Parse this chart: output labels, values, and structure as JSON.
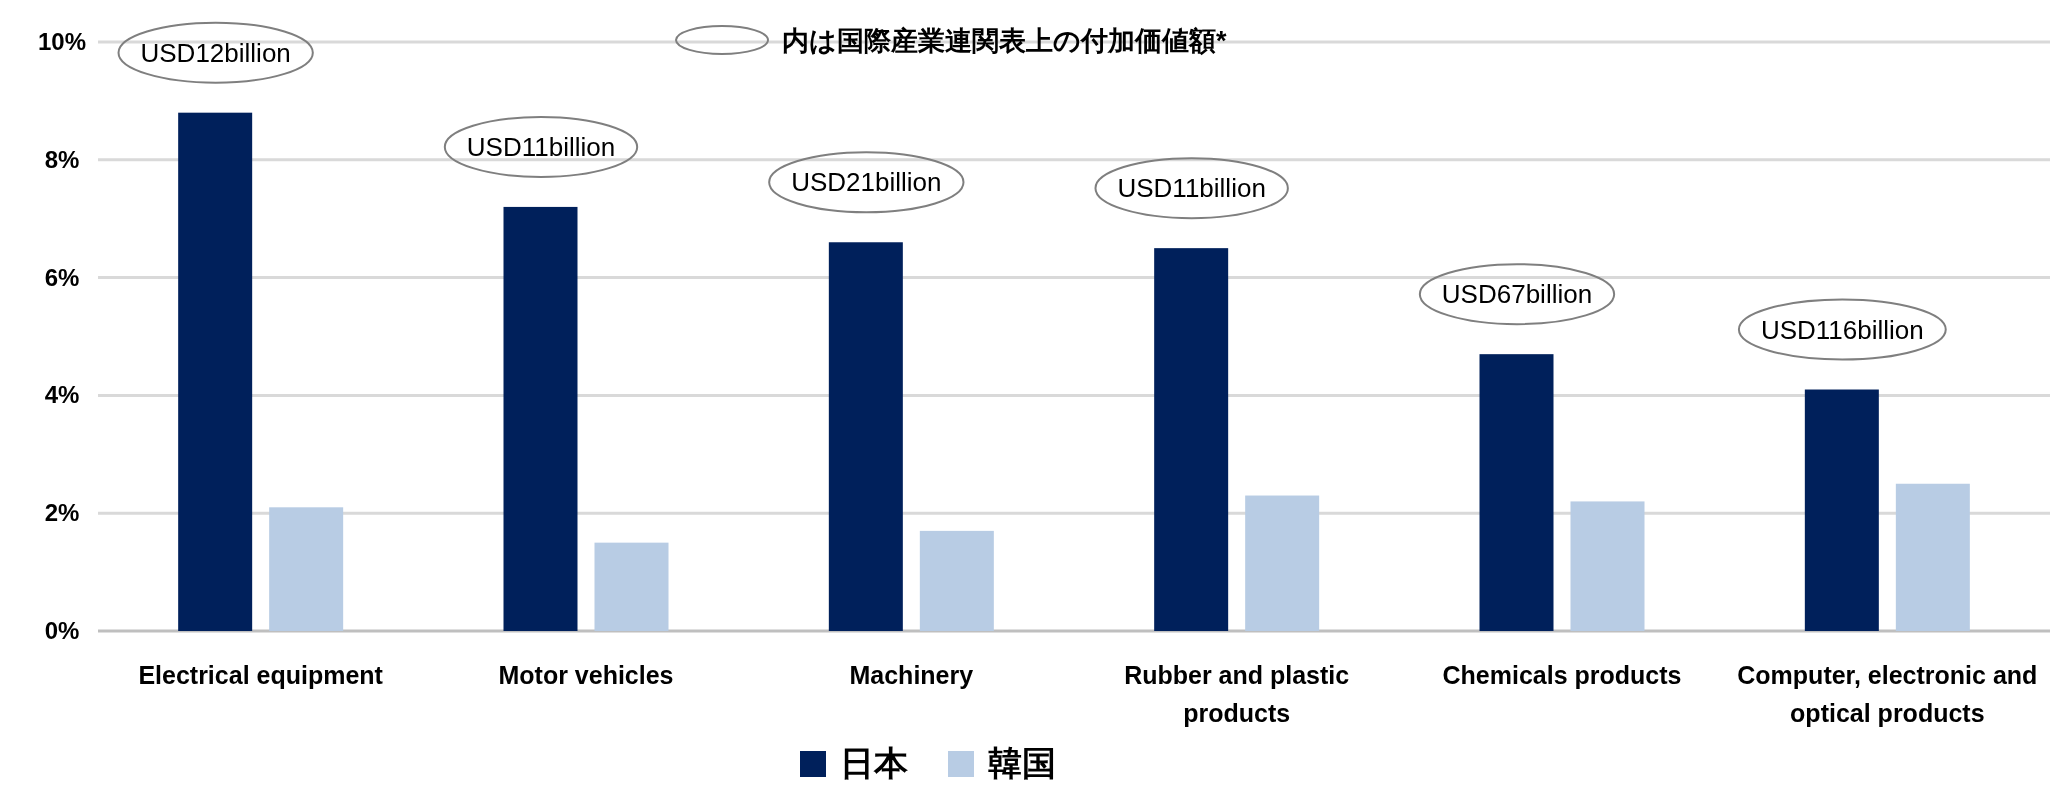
{
  "chart_data": {
    "type": "bar",
    "categories": [
      "Electrical equipment",
      "Motor vehicles",
      "Machinery",
      "Rubber and plastic products",
      "Chemicals products",
      "Computer, electronic and optical products"
    ],
    "series": [
      {
        "name": "日本",
        "color": "#00205b",
        "values": [
          8.8,
          7.2,
          6.6,
          6.5,
          4.7,
          4.1
        ]
      },
      {
        "name": "韓国",
        "color": "#b8cce4",
        "values": [
          2.1,
          1.5,
          1.7,
          2.3,
          2.2,
          2.5
        ]
      }
    ],
    "ylim": [
      0,
      10
    ],
    "yticks": [
      {
        "value": 0,
        "label": "0%"
      },
      {
        "value": 2,
        "label": "2%"
      },
      {
        "value": 4,
        "label": "4%"
      },
      {
        "value": 6,
        "label": "6%"
      },
      {
        "value": 8,
        "label": "8%"
      },
      {
        "value": 10,
        "label": "10%"
      }
    ],
    "grid": "y",
    "legend": "bottom",
    "annotations": [
      "内は国際産業連関表上の付加価値額*",
      "USD12billion",
      "USD11billion",
      "USD21billion",
      "USD11billion",
      "USD67billion",
      "USD116billion"
    ]
  }
}
